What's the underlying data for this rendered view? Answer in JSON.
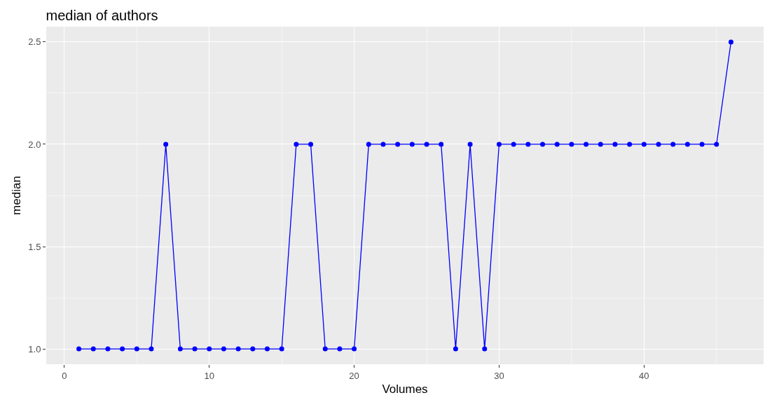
{
  "chart_data": {
    "type": "line",
    "title": "median of authors",
    "xlabel": "Volumes",
    "ylabel": "median",
    "x": [
      1,
      2,
      3,
      4,
      5,
      6,
      7,
      8,
      9,
      10,
      11,
      12,
      13,
      14,
      15,
      16,
      17,
      18,
      19,
      20,
      21,
      22,
      23,
      24,
      25,
      26,
      27,
      28,
      29,
      30,
      31,
      32,
      33,
      34,
      35,
      36,
      37,
      38,
      39,
      40,
      41,
      42,
      43,
      44,
      45,
      46
    ],
    "series": [
      {
        "color": "#0000ff",
        "values": [
          1,
          1,
          1,
          1,
          1,
          1,
          2,
          1,
          1,
          1,
          1,
          1,
          1,
          1,
          1,
          2,
          2,
          1,
          1,
          1,
          2,
          2,
          2,
          2,
          2,
          2,
          1,
          2,
          1,
          2,
          2,
          2,
          2,
          2,
          2,
          2,
          2,
          2,
          2,
          2,
          2,
          2,
          2,
          2,
          2,
          2.5
        ]
      }
    ],
    "xlim": [
      -1.25,
      48.25
    ],
    "xticks": [
      0,
      10,
      20,
      30,
      40
    ],
    "ylim": [
      0.925,
      2.575
    ],
    "yticks": [
      {
        "value": 1,
        "label": "1.0"
      },
      {
        "value": 1.5,
        "label": "1.5"
      },
      {
        "value": 2,
        "label": "2.0"
      },
      {
        "value": 2.5,
        "label": "2.5"
      }
    ],
    "grid": true,
    "marker": "circle",
    "line_style": "solid"
  }
}
